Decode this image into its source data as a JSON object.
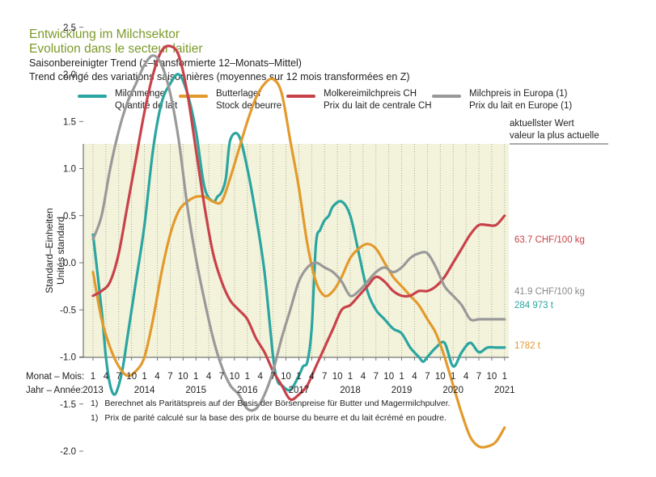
{
  "header": {
    "title_de": "Entwicklung im Milchsektor",
    "title_fr": "Evolution dans le secteur laitier",
    "subtitle_de": "Saisonbereinigter Trend (z–transformierte 12–Monats–Mittel)",
    "subtitle_fr": "Trend corrigé des variations saisonnières (moyennes sur 12 mois transformées en Z)"
  },
  "legend": [
    {
      "line1": "Milchmenge",
      "line2": "Quantité de lait",
      "color": "#2aa5a0"
    },
    {
      "line1": "Butterlager",
      "line2": "Stock de beurre",
      "color": "#e39a2c"
    },
    {
      "line1": "Molkereimilchpreis CH",
      "line2": "Prix du lait de centrale CH",
      "color": "#c8424a"
    },
    {
      "line1": "Milchpreis in Europa (1)",
      "line2": "Prix du lait en Europe (1)",
      "color": "#999999"
    }
  ],
  "latest_header": {
    "line1": "aktuellster Wert",
    "line2": "valeur la plus actuelle"
  },
  "end_labels": {
    "milk_price_ch": "63.7 CHF/100 kg",
    "milk_price_eu": "41.9 CHF/100 kg",
    "milk_volume": "284 973 t",
    "butter_stock": "1782 t"
  },
  "axis": {
    "ylabel_de": "Standard–Einheiten",
    "ylabel_fr": "Unités standard",
    "month_row_label": "Monat – Mois:",
    "year_row_label": "Jahr – Année:"
  },
  "footnotes": {
    "de": "Berechnet als Paritätspreis auf der Basis der Börsenpreise für Butter und Magermilchpulver.",
    "fr": "Prix de parité calculé sur la base des prix de bourse du beurre et du lait écrémé en poudre.",
    "marker": "1)"
  },
  "chart_data": {
    "type": "line",
    "x_unit": "months since Jan 2013",
    "ylim": [
      -2.0,
      2.5
    ],
    "yticks": [
      "2.5",
      "2.0",
      "1.5",
      "1.0",
      "0.5",
      "0.0",
      "-0.5",
      "-1.0",
      "-1.5",
      "-2.0"
    ],
    "month_ticks": [
      "1",
      "4",
      "7",
      "10",
      "1",
      "4",
      "7",
      "10",
      "1",
      "4",
      "7",
      "10",
      "1",
      "4",
      "7",
      "10",
      "1",
      "4",
      "7",
      "10",
      "1",
      "4",
      "7",
      "10",
      "1",
      "4",
      "7",
      "10",
      "1",
      "4",
      "7",
      "10",
      "1"
    ],
    "year_labels": [
      "2013",
      "2014",
      "2015",
      "2016",
      "2017",
      "2018",
      "2019",
      "2020",
      "2021"
    ],
    "background": "#f3f3dc",
    "grid": "vertical dotted at each tick",
    "series": [
      {
        "name": "Milchmenge",
        "color": "#2aa5a0",
        "x": [
          0,
          2,
          3,
          4,
          5,
          6,
          7,
          8,
          9,
          10,
          12,
          14,
          16,
          18,
          20,
          22,
          24,
          26,
          28,
          29,
          30,
          31,
          32,
          34,
          36,
          38,
          40,
          42,
          43,
          44,
          46,
          48,
          49,
          50,
          51,
          52,
          53,
          54,
          55,
          56,
          58,
          60,
          62,
          64,
          66,
          68,
          70,
          72,
          74,
          76,
          77,
          78,
          80,
          82,
          84,
          86,
          88,
          90,
          92,
          94,
          96
        ],
        "y": [
          0.3,
          -0.5,
          -1.0,
          -1.3,
          -1.4,
          -1.3,
          -1.1,
          -0.8,
          -0.5,
          -0.2,
          0.4,
          1.2,
          1.7,
          1.9,
          2.0,
          1.8,
          1.4,
          0.8,
          0.65,
          0.7,
          0.75,
          0.9,
          1.3,
          1.35,
          1.0,
          0.5,
          -0.1,
          -1.0,
          -1.25,
          -1.3,
          -1.35,
          -1.2,
          -1.1,
          -1.05,
          -0.7,
          0.2,
          0.35,
          0.45,
          0.5,
          0.6,
          0.65,
          0.5,
          0.1,
          -0.3,
          -0.5,
          -0.6,
          -0.7,
          -0.75,
          -0.9,
          -1.0,
          -1.05,
          -1.0,
          -0.9,
          -0.85,
          -1.1,
          -0.95,
          -0.85,
          -0.95,
          -0.9,
          -0.9,
          -0.9
        ]
      },
      {
        "name": "Butterlager",
        "color": "#e39a2c",
        "x": [
          0,
          2,
          4,
          6,
          8,
          10,
          12,
          14,
          16,
          18,
          20,
          22,
          24,
          26,
          28,
          30,
          32,
          34,
          36,
          38,
          40,
          42,
          44,
          46,
          48,
          50,
          52,
          54,
          56,
          58,
          60,
          62,
          64,
          66,
          68,
          70,
          72,
          74,
          76,
          78,
          80,
          82,
          84,
          86,
          88,
          90,
          92,
          94,
          96
        ],
        "y": [
          -0.1,
          -0.6,
          -0.9,
          -1.1,
          -1.2,
          -1.15,
          -1.0,
          -0.6,
          -0.1,
          0.3,
          0.55,
          0.65,
          0.7,
          0.7,
          0.65,
          0.65,
          0.9,
          1.2,
          1.5,
          1.75,
          1.9,
          1.95,
          1.8,
          1.3,
          0.8,
          0.2,
          -0.2,
          -0.35,
          -0.3,
          -0.15,
          0.05,
          0.15,
          0.2,
          0.15,
          0.0,
          -0.15,
          -0.25,
          -0.35,
          -0.45,
          -0.6,
          -0.75,
          -1.0,
          -1.3,
          -1.6,
          -1.85,
          -1.95,
          -1.95,
          -1.9,
          -1.75
        ]
      },
      {
        "name": "Molkereimilchpreis CH",
        "color": "#c8424a",
        "x": [
          0,
          2,
          4,
          6,
          8,
          10,
          12,
          14,
          16,
          18,
          20,
          22,
          24,
          26,
          28,
          30,
          32,
          34,
          36,
          38,
          40,
          42,
          44,
          46,
          48,
          50,
          52,
          54,
          56,
          58,
          60,
          62,
          64,
          66,
          68,
          70,
          72,
          74,
          76,
          78,
          80,
          82,
          84,
          86,
          88,
          90,
          92,
          94,
          96
        ],
        "y": [
          -0.35,
          -0.3,
          -0.2,
          0.1,
          0.6,
          1.1,
          1.6,
          2.0,
          2.25,
          2.3,
          2.2,
          1.8,
          1.2,
          0.6,
          0.1,
          -0.2,
          -0.4,
          -0.5,
          -0.6,
          -0.8,
          -0.95,
          -1.15,
          -1.3,
          -1.45,
          -1.4,
          -1.3,
          -1.1,
          -0.9,
          -0.7,
          -0.5,
          -0.45,
          -0.35,
          -0.25,
          -0.15,
          -0.2,
          -0.3,
          -0.35,
          -0.35,
          -0.3,
          -0.3,
          -0.25,
          -0.15,
          0.0,
          0.15,
          0.3,
          0.4,
          0.4,
          0.4,
          0.5
        ]
      },
      {
        "name": "Milchpreis in Europa (1)",
        "color": "#999999",
        "x": [
          0,
          2,
          4,
          6,
          8,
          10,
          12,
          14,
          16,
          18,
          20,
          22,
          24,
          26,
          28,
          30,
          32,
          34,
          36,
          38,
          40,
          42,
          44,
          46,
          48,
          50,
          52,
          54,
          56,
          58,
          60,
          62,
          64,
          66,
          68,
          70,
          72,
          74,
          76,
          78,
          80,
          82,
          84,
          86,
          88,
          90,
          92,
          94,
          96
        ],
        "y": [
          0.25,
          0.5,
          1.0,
          1.4,
          1.7,
          1.9,
          2.1,
          2.2,
          2.1,
          1.8,
          1.3,
          0.6,
          0.05,
          -0.4,
          -0.8,
          -1.1,
          -1.3,
          -1.4,
          -1.55,
          -1.55,
          -1.4,
          -1.15,
          -0.8,
          -0.5,
          -0.2,
          -0.05,
          0.0,
          -0.05,
          -0.1,
          -0.2,
          -0.35,
          -0.3,
          -0.2,
          -0.1,
          -0.05,
          -0.1,
          -0.05,
          0.05,
          0.1,
          0.1,
          -0.05,
          -0.25,
          -0.35,
          -0.45,
          -0.6,
          -0.6,
          -0.6,
          -0.6,
          -0.6
        ]
      }
    ]
  }
}
